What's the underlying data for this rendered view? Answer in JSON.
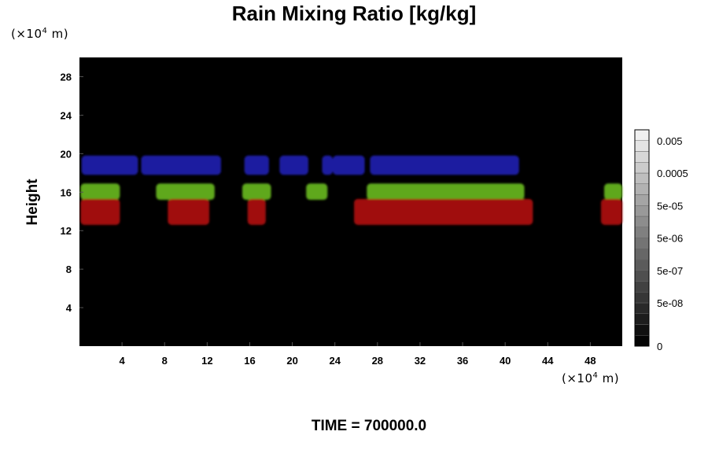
{
  "chart_data": {
    "type": "heatmap",
    "title": "Rain Mixing Ratio [kg/kg]",
    "ylabel": "Height",
    "xlabel": "",
    "x_unit_prefix": "(×10",
    "x_unit_exp": "4",
    "x_unit_suffix": " m)",
    "y_unit_prefix": "(×10",
    "y_unit_exp": "4",
    "y_unit_suffix": " m)",
    "xlim": [
      0,
      51
    ],
    "ylim": [
      0,
      30
    ],
    "x_ticks": [
      "4",
      "8",
      "12",
      "16",
      "20",
      "24",
      "28",
      "32",
      "36",
      "40",
      "44",
      "48"
    ],
    "y_ticks": [
      "4",
      "8",
      "12",
      "16",
      "20",
      "24",
      "28"
    ],
    "background_color": "#000000",
    "colorbar": {
      "tick_labels": [
        "0",
        "5e-08",
        "5e-07",
        "5e-06",
        "5e-05",
        "0.0005",
        "0.005"
      ],
      "levels": 20
    },
    "layers": [
      {
        "color": "#1a1aa0",
        "y_range": [
          17.8,
          19.8
        ],
        "segments": [
          [
            0.2,
            5.5
          ],
          [
            5.8,
            13.3
          ],
          [
            15.5,
            17.8
          ],
          [
            18.8,
            21.5
          ],
          [
            22.8,
            23.8
          ],
          [
            23.8,
            26.8
          ],
          [
            27.3,
            41.3
          ]
        ]
      },
      {
        "color": "#5fa81f",
        "y_range": [
          15.2,
          16.9
        ],
        "segments": [
          [
            0.1,
            3.8
          ],
          [
            7.2,
            12.7
          ],
          [
            15.3,
            18.0
          ],
          [
            21.3,
            23.3
          ],
          [
            27.0,
            41.8
          ],
          [
            49.3,
            51.0
          ]
        ]
      },
      {
        "color": "#a01010",
        "y_range": [
          12.6,
          15.3
        ],
        "segments": [
          [
            0.1,
            3.8
          ],
          [
            8.3,
            12.2
          ],
          [
            15.8,
            17.5
          ],
          [
            25.8,
            42.6
          ],
          [
            49.0,
            51.0
          ]
        ]
      }
    ]
  },
  "footer": {
    "time_label": "TIME = 700000.0"
  }
}
